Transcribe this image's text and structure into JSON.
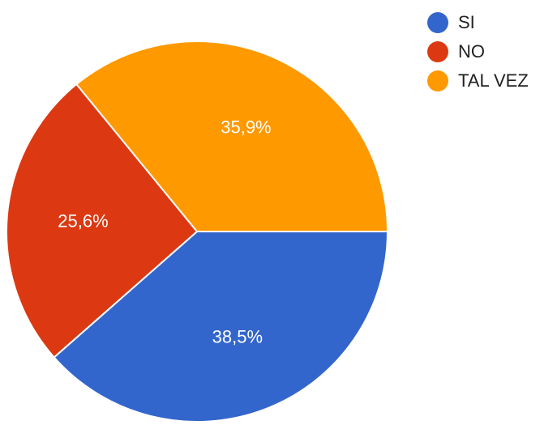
{
  "chart_data": {
    "type": "pie",
    "title": "",
    "slices": [
      {
        "label": "SI",
        "value": 38.5,
        "display": "38,5%",
        "color": "#3366cc"
      },
      {
        "label": "NO",
        "value": 25.6,
        "display": "25,6%",
        "color": "#dc3912"
      },
      {
        "label": "TAL VEZ",
        "value": 35.9,
        "display": "35,9%",
        "color": "#ff9900"
      }
    ],
    "start": "right-horizontal",
    "direction": "clockwise",
    "legend_position": "top-right"
  }
}
